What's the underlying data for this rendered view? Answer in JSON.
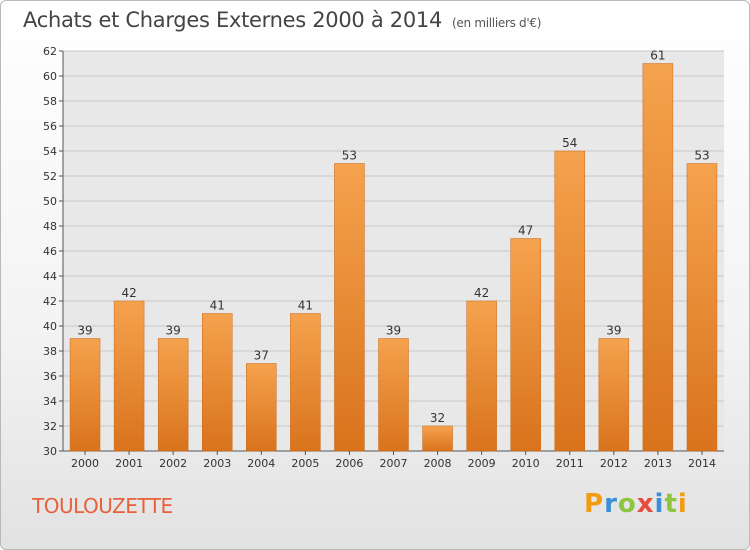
{
  "header": {
    "title": "Achats et Charges Externes 2000 à 2014",
    "subtitle": "(en milliers d'€)"
  },
  "footer": {
    "commune": "TOULOUZETTE",
    "logo": {
      "letters": [
        "P",
        "r",
        "o",
        "x",
        "i",
        "t",
        "i"
      ],
      "colors": [
        "#f39c12",
        "#3b8fd6",
        "#8cc63f",
        "#e74c3c",
        "#3b8fd6",
        "#8cc63f",
        "#f39c12"
      ]
    }
  },
  "colors": {
    "bar_light": "#f5a24e",
    "bar_dark": "#d9731c",
    "grid": "#c8c8c8",
    "plot_bg": "#e8e8e8"
  },
  "chart_data": {
    "type": "bar",
    "title": "Achats et Charges Externes 2000 à 2014",
    "subtitle": "(en milliers d'€)",
    "categories": [
      "2000",
      "2001",
      "2002",
      "2003",
      "2004",
      "2005",
      "2006",
      "2007",
      "2008",
      "2009",
      "2010",
      "2011",
      "2012",
      "2013",
      "2014"
    ],
    "values": [
      39,
      42,
      39,
      41,
      37,
      41,
      53,
      39,
      32,
      42,
      47,
      54,
      39,
      61,
      53
    ],
    "ylim": [
      30,
      62
    ],
    "yticks": [
      30,
      32,
      34,
      36,
      38,
      40,
      42,
      44,
      46,
      48,
      50,
      52,
      54,
      56,
      58,
      60,
      62
    ],
    "grid": true,
    "data_labels": true
  }
}
